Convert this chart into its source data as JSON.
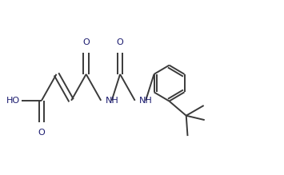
{
  "bg_color": "#ffffff",
  "line_color": "#3a3a3a",
  "line_width": 1.4,
  "text_color": "#1a1a6e",
  "font_size": 8.0,
  "figsize": [
    3.55,
    2.19
  ],
  "dpi": 100,
  "xlim": [
    0,
    10
  ],
  "ylim": [
    0,
    6
  ]
}
